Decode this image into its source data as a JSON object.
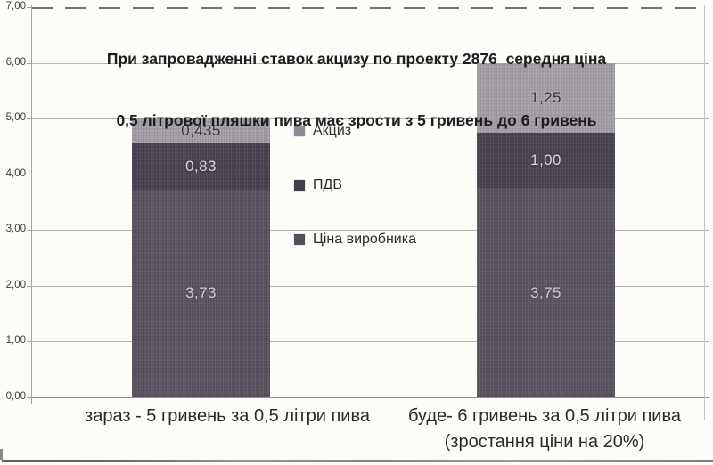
{
  "title": {
    "line1": "При запровадженні ставок акцизу по проекту 2876  середня ціна",
    "line2": "0,5 літрової пляшки пива має зрости з 5 гривень до 6 гривень"
  },
  "legend": {
    "items": [
      {
        "key": "excise",
        "label": "Акциз",
        "swatch_color": "#8f8b92"
      },
      {
        "key": "vat",
        "label": "ПДВ",
        "swatch_color": "#443e4a"
      },
      {
        "key": "producer-price",
        "label": "Ціна виробника",
        "swatch_color": "#565059"
      }
    ]
  },
  "xaxis": {
    "labels": [
      {
        "key": "now",
        "lines": [
          "зараз - 5 гривень за 0,5 літри пива"
        ]
      },
      {
        "key": "future",
        "lines": [
          "буде- 6 гривень за 0,5 літри пива",
          "(зростання ціни на 20%)"
        ]
      }
    ]
  },
  "chart_data": {
    "type": "bar",
    "stacked": true,
    "title": "При запровадженні ставок акцизу по проекту 2876 середня ціна 0,5 літрової пляшки пива має зрости з 5 гривень до 6 гривень",
    "categories": [
      "зараз - 5 гривень за 0,5 літри пива",
      "буде- 6 гривень за 0,5 літри пива (зростання ціни на 20%)"
    ],
    "series": [
      {
        "key": "producer-price",
        "name": "Ціна виробника",
        "values": [
          3.73,
          3.75
        ],
        "labels": [
          "3,73",
          "3,75"
        ],
        "color": "#5a5360",
        "label_color": "#cfccd2"
      },
      {
        "key": "vat",
        "name": "ПДВ",
        "values": [
          0.83,
          1.0
        ],
        "labels": [
          "0,83",
          "1,00"
        ],
        "color": "#494250",
        "label_color": "#d9d7dc"
      },
      {
        "key": "excise",
        "name": "Акциз",
        "values": [
          0.435,
          1.25
        ],
        "labels": [
          "0,435",
          "1,25"
        ],
        "color": "#a49fa6",
        "label_color": "#383340"
      }
    ],
    "ylim": [
      0,
      7
    ],
    "yticks": [
      "7,00",
      "6,00",
      "5,00",
      "4,00",
      "3,00",
      "2,00",
      "1,00",
      "0,00"
    ],
    "grid": true,
    "legend_position": "center-between-bars"
  }
}
